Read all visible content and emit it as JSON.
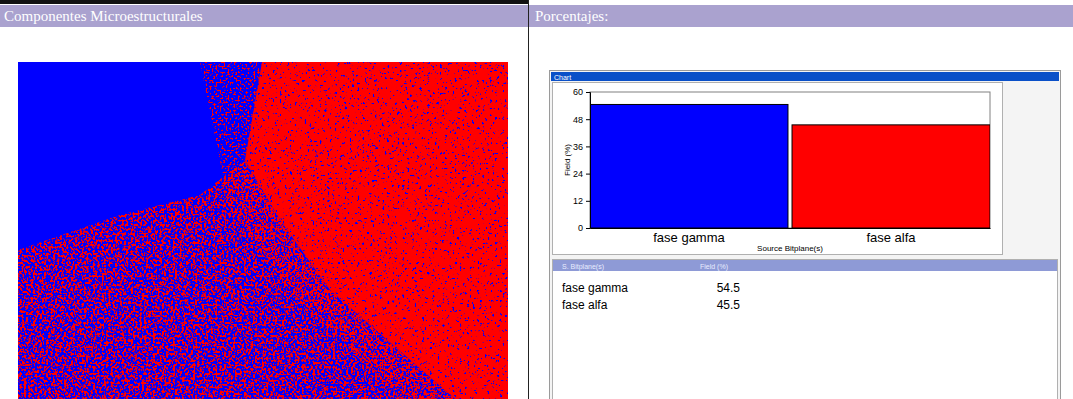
{
  "header": {
    "left": "Componentes Microestructurales",
    "right": "Porcentajes:"
  },
  "window": {
    "title": "Chart"
  },
  "table": {
    "columns": [
      "S. Bitplane(s)",
      "Field (%)"
    ]
  },
  "chart_data": {
    "type": "bar",
    "categories": [
      "fase gamma",
      "fase alfa"
    ],
    "values": [
      54.5,
      45.5
    ],
    "colors": [
      "#0000ff",
      "#ff0000"
    ],
    "x_label": "Source Bitplane(s)",
    "y_label": "Field (%)",
    "ylim": [
      0,
      60
    ],
    "yticks": [
      0,
      12,
      24,
      36,
      48,
      60
    ],
    "grid": false
  }
}
